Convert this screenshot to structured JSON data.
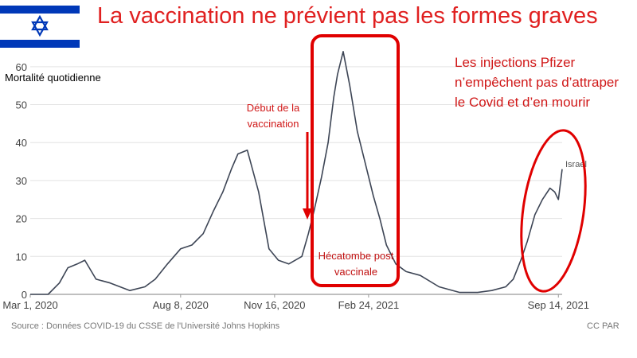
{
  "slide": {
    "title": "La vaccination ne prévient pas les formes graves",
    "note_lines": [
      "Les injections Pfizer",
      "n’empêchent pas d’attraper",
      "le Covid et d’en mourir"
    ],
    "annotation_start": [
      "Début de la",
      "vaccination"
    ],
    "annotation_hecatombe": [
      "Hécatombe post",
      "vaccinale"
    ],
    "source": "Source : Données COVID-19 du CSSE de l'Université Johns Hopkins",
    "credit": "CC PAR",
    "colors": {
      "title": "#e02020",
      "annotation": "#d01818",
      "line": "#3d4555",
      "flag_blue": "#0038b8"
    }
  },
  "chart_data": {
    "type": "line",
    "title": "",
    "ylabel": "Mortalité quotidienne",
    "xlabel": "",
    "ylim": [
      0,
      65
    ],
    "yticks": [
      0,
      10,
      20,
      30,
      40,
      50,
      60
    ],
    "xticks": [
      "Mar 1, 2020",
      "Aug 8, 2020",
      "Nov 16, 2020",
      "Feb 24, 2021",
      "Sep 14, 2021"
    ],
    "grid": true,
    "series": [
      {
        "name": "Israel",
        "x": [
          "2020-03-01",
          "2020-03-20",
          "2020-04-01",
          "2020-04-10",
          "2020-04-20",
          "2020-04-28",
          "2020-05-10",
          "2020-05-25",
          "2020-06-15",
          "2020-07-01",
          "2020-07-12",
          "2020-07-25",
          "2020-08-08",
          "2020-08-20",
          "2020-09-01",
          "2020-09-12",
          "2020-09-22",
          "2020-10-01",
          "2020-10-08",
          "2020-10-18",
          "2020-10-30",
          "2020-11-10",
          "2020-11-20",
          "2020-12-01",
          "2020-12-15",
          "2020-12-22",
          "2020-12-28",
          "2021-01-05",
          "2021-01-12",
          "2021-01-18",
          "2021-01-22",
          "2021-01-28",
          "2021-02-04",
          "2021-02-12",
          "2021-02-20",
          "2021-03-01",
          "2021-03-08",
          "2021-03-15",
          "2021-03-25",
          "2021-04-05",
          "2021-04-20",
          "2021-05-10",
          "2021-06-01",
          "2021-06-20",
          "2021-07-05",
          "2021-07-20",
          "2021-07-28",
          "2021-08-05",
          "2021-08-12",
          "2021-08-20",
          "2021-08-28",
          "2021-09-05",
          "2021-09-10",
          "2021-09-14",
          "2021-09-18"
        ],
        "values": [
          0,
          0,
          3,
          7,
          8,
          9,
          4,
          3,
          1,
          2,
          4,
          8,
          12,
          13,
          16,
          22,
          27,
          33,
          37,
          38,
          27,
          12,
          9,
          8,
          10,
          16,
          22,
          31,
          40,
          52,
          58,
          64,
          55,
          43,
          35,
          26,
          20,
          13,
          8,
          6,
          5,
          2,
          0.5,
          0.5,
          1,
          2,
          4,
          9,
          14,
          21,
          25,
          28,
          27,
          25,
          33
        ]
      }
    ]
  }
}
